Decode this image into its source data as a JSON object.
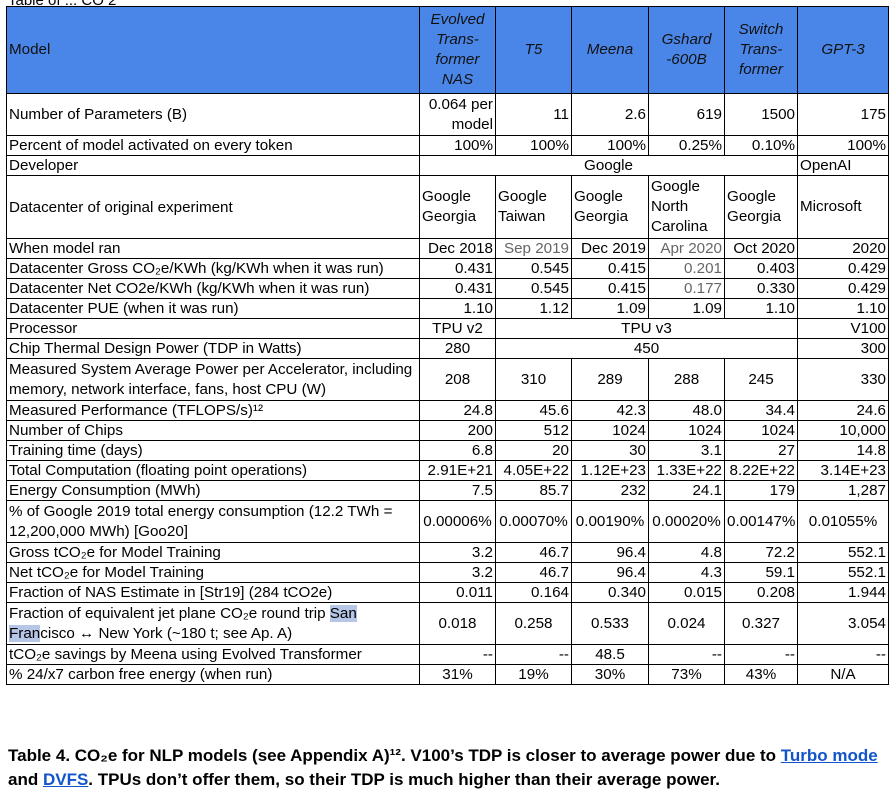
{
  "top_fragment": "Table of ... CO 2",
  "header": {
    "model_label": "Model",
    "columns": [
      "Evolved Trans-former NAS",
      "T5",
      "Meena",
      "Gshard -600B",
      "Switch Trans-former",
      "GPT-3"
    ]
  },
  "rows": {
    "params": {
      "label": "Number of Parameters (B)",
      "values": [
        "0.064 per model",
        "11",
        "2.6",
        "619",
        "1500",
        "175"
      ]
    },
    "activated": {
      "label": "Percent of model activated on every token",
      "values": [
        "100%",
        "100%",
        "100%",
        "0.25%",
        "0.10%",
        "100%"
      ]
    },
    "developer": {
      "label": "Developer",
      "google": "Google",
      "openai": "OpenAI"
    },
    "datacenter": {
      "label": "Datacenter of original experiment",
      "values": [
        "Google Georgia",
        "Google Taiwan",
        "Google Georgia",
        "Google North Carolina",
        "Google Georgia",
        "Microsoft"
      ]
    },
    "when": {
      "label": "When model ran",
      "values": [
        "Dec 2018",
        "Sep 2019",
        "Dec 2019",
        "Apr 2020",
        "Oct 2020",
        "2020"
      ]
    },
    "gross_co2": {
      "label": "Datacenter Gross CO₂e/KWh (kg/KWh when it was run)",
      "values": [
        "0.431",
        "0.545",
        "0.415",
        "0.201",
        "0.403",
        "0.429"
      ]
    },
    "net_co2": {
      "label": "Datacenter Net CO2e/KWh (kg/KWh when it was run)",
      "values": [
        "0.431",
        "0.545",
        "0.415",
        "0.177",
        "0.330",
        "0.429"
      ]
    },
    "pue": {
      "label": "Datacenter PUE (when it was run)",
      "values": [
        "1.10",
        "1.12",
        "1.09",
        "1.09",
        "1.10",
        "1.10"
      ]
    },
    "processor": {
      "label": "Processor",
      "tpu2": "TPU v2",
      "tpu3": "TPU v3",
      "v100": "V100"
    },
    "tdp": {
      "label": "Chip Thermal Design Power (TDP in Watts)",
      "a": "280",
      "b": "450",
      "c": "300"
    },
    "power": {
      "label": "Measured System Average Power per Accelerator, including memory, network interface, fans, host CPU (W)",
      "values": [
        "208",
        "310",
        "289",
        "288",
        "245",
        "330"
      ]
    },
    "perf": {
      "label": "Measured Performance (TFLOPS/s)¹²",
      "values": [
        "24.8",
        "45.6",
        "42.3",
        "48.0",
        "34.4",
        "24.6"
      ]
    },
    "chips": {
      "label": "Number of Chips",
      "values": [
        "200",
        "512",
        "1024",
        "1024",
        "1024",
        "10,000"
      ]
    },
    "training_time": {
      "label": "Training time (days)",
      "values": [
        "6.8",
        "20",
        "30",
        "3.1",
        "27",
        "14.8"
      ]
    },
    "computation": {
      "label": "Total Computation (floating point operations)",
      "values": [
        "2.91E+21",
        "4.05E+22",
        "1.12E+23",
        "1.33E+22",
        "8.22E+22",
        "3.14E+23"
      ]
    },
    "energy": {
      "label": "Energy Consumption (MWh)",
      "values": [
        "7.5",
        "85.7",
        "232",
        "24.1",
        "179",
        "1,287"
      ]
    },
    "pct_google": {
      "label": "% of Google 2019 total energy consumption (12.2 TWh = 12,200,000 MWh) [Goo20]",
      "values": [
        "0.00006%",
        "0.00070%",
        "0.00190%",
        "0.00020%",
        "0.00147%",
        "0.01055%"
      ]
    },
    "gross_t": {
      "label": "Gross tCO₂e for Model Training",
      "values": [
        "3.2",
        "46.7",
        "96.4",
        "4.8",
        "72.2",
        "552.1"
      ]
    },
    "net_t": {
      "label": "Net tCO₂e for Model Training",
      "values": [
        "3.2",
        "46.7",
        "96.4",
        "4.3",
        "59.1",
        "552.1"
      ]
    },
    "nas_frac": {
      "label": "Fraction of NAS Estimate in [Str19] (284 tCO2e)",
      "values": [
        "0.011",
        "0.164",
        "0.340",
        "0.015",
        "0.208",
        "1.944"
      ]
    },
    "jet_frac": {
      "label_a": "Fraction of equivalent jet plane CO₂e round trip ",
      "label_hl1": "San",
      "label_hl2": "Fran",
      "label_b": "cisco ↔ New York (~180 t; see Ap. A)",
      "values": [
        "0.018",
        "0.258",
        "0.533",
        "0.024",
        "0.327",
        "3.054"
      ]
    },
    "savings": {
      "label": "tCO₂e savings by Meena using Evolved Transformer",
      "values": [
        "--",
        "--",
        "48.5",
        "--",
        "--",
        "--"
      ]
    },
    "cfe": {
      "label": "% 24/x7 carbon free energy (when run)",
      "values": [
        "31%",
        "19%",
        "30%",
        "73%",
        "43%",
        "N/A"
      ]
    }
  },
  "caption": {
    "part1": "Table 4. CO₂e for NLP models (see Appendix A)¹². V100’s TDP is closer to average power due to ",
    "link1": "Turbo mode",
    "part2": " and ",
    "link2": "DVFS",
    "part3": ". TPUs don’t offer them, so their TDP is much higher than their average power."
  }
}
